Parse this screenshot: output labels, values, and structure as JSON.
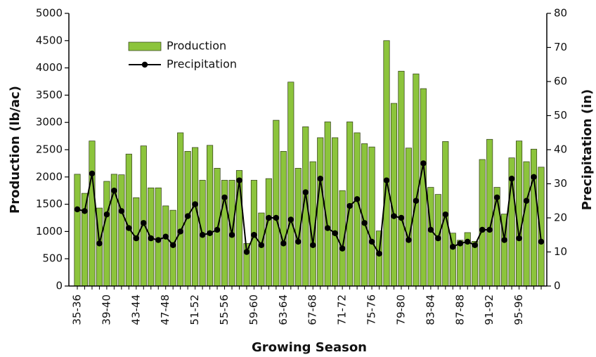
{
  "chart_data": {
    "type": "bar-line",
    "x_label": "Growing Season",
    "y_label": "Production (lb/ac)",
    "y2_label": "Precipitation (in)",
    "categories": [
      "35-36",
      null,
      null,
      null,
      "39-40",
      null,
      null,
      null,
      "43-44",
      null,
      null,
      null,
      "47-48",
      null,
      null,
      null,
      "51-52",
      null,
      null,
      null,
      "55-56",
      null,
      null,
      null,
      "59-60",
      null,
      null,
      null,
      "63-64",
      null,
      null,
      null,
      "67-68",
      null,
      null,
      null,
      "71-72",
      null,
      null,
      null,
      "75-76",
      null,
      null,
      null,
      "79-80",
      null,
      null,
      null,
      "83-84",
      null,
      null,
      null,
      "87-88",
      null,
      null,
      null,
      "91-92",
      null,
      null,
      null,
      "95-96",
      null,
      null,
      null
    ],
    "series": [
      {
        "name": "Production",
        "type": "bar",
        "color": "#8cc43c",
        "values": [
          2050,
          1700,
          2660,
          1430,
          1920,
          2050,
          2040,
          2420,
          1620,
          2570,
          1800,
          1800,
          1470,
          1390,
          2810,
          2470,
          2540,
          1940,
          2580,
          2160,
          1940,
          1940,
          2120,
          780,
          1940,
          1340,
          1970,
          3040,
          2470,
          3740,
          2160,
          2920,
          2280,
          2720,
          3010,
          2720,
          1750,
          3010,
          2810,
          2610,
          2550,
          1010,
          4500,
          3350,
          3940,
          2530,
          3890,
          3620,
          1810,
          1680,
          2650,
          970,
          840,
          980,
          820,
          2320,
          2690,
          1810,
          1320,
          2350,
          2660,
          2280,
          2510,
          2180
        ]
      },
      {
        "name": "Precipitation",
        "type": "line",
        "axis": "y2",
        "color": "#000000",
        "values": [
          22.5,
          22,
          33,
          12.5,
          21,
          28,
          22,
          17,
          14,
          18.5,
          14,
          13.5,
          14.5,
          12,
          16,
          20.5,
          24,
          15,
          15.5,
          16.5,
          26,
          15,
          31,
          10,
          15,
          12,
          20,
          20,
          12.5,
          19.5,
          13,
          27.5,
          12,
          31.5,
          17,
          15.5,
          11,
          23.5,
          25.5,
          18.5,
          13,
          9.5,
          31,
          20.5,
          20,
          13.5,
          25,
          36,
          16.5,
          14,
          21,
          11.5,
          12.5,
          13,
          12,
          16.5,
          16.5,
          26,
          13.5,
          31.5,
          14,
          25,
          32,
          13
        ]
      }
    ],
    "ylim": [
      0,
      5000
    ],
    "yticks": [
      0,
      500,
      1000,
      1500,
      2000,
      2500,
      3000,
      3500,
      4000,
      4500,
      5000
    ],
    "y2lim": [
      0,
      80
    ],
    "y2ticks": [
      0,
      10,
      20,
      30,
      40,
      50,
      60,
      70,
      80
    ]
  }
}
